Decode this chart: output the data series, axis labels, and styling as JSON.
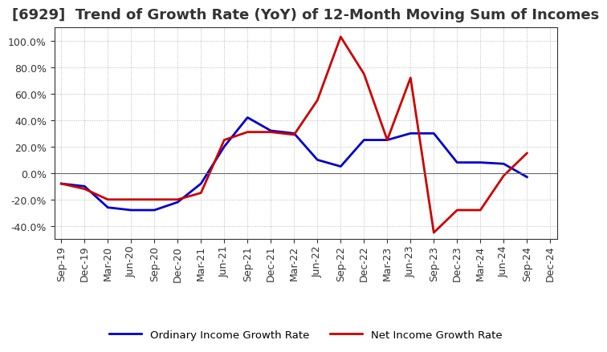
{
  "title": "[6929]  Trend of Growth Rate (YoY) of 12-Month Moving Sum of Incomes",
  "x_labels": [
    "Sep-19",
    "Dec-19",
    "Mar-20",
    "Jun-20",
    "Sep-20",
    "Dec-20",
    "Mar-21",
    "Jun-21",
    "Sep-21",
    "Dec-21",
    "Mar-22",
    "Jun-22",
    "Sep-22",
    "Dec-22",
    "Mar-23",
    "Jun-23",
    "Sep-23",
    "Dec-23",
    "Mar-24",
    "Jun-24",
    "Sep-24",
    "Dec-24"
  ],
  "ordinary_income": [
    -8,
    -10,
    -26,
    -28,
    -28,
    -22,
    -8,
    20,
    42,
    32,
    30,
    10,
    5,
    25,
    25,
    30,
    30,
    8,
    8,
    7,
    -3,
    null
  ],
  "net_income": [
    -8,
    -12,
    -20,
    -20,
    -20,
    -20,
    -15,
    25,
    31,
    31,
    29,
    55,
    103,
    75,
    25,
    72,
    -45,
    -28,
    -28,
    -2,
    15,
    null
  ],
  "ordinary_color": "#0000cc",
  "net_color": "#cc0000",
  "ylim": [
    -50,
    110
  ],
  "yticks": [
    -40,
    -20,
    0,
    20,
    40,
    60,
    80,
    100
  ],
  "background_color": "#ffffff",
  "grid_color": "#aaaaaa",
  "legend_labels": [
    "Ordinary Income Growth Rate",
    "Net Income Growth Rate"
  ],
  "title_fontsize": 13,
  "tick_fontsize": 9
}
